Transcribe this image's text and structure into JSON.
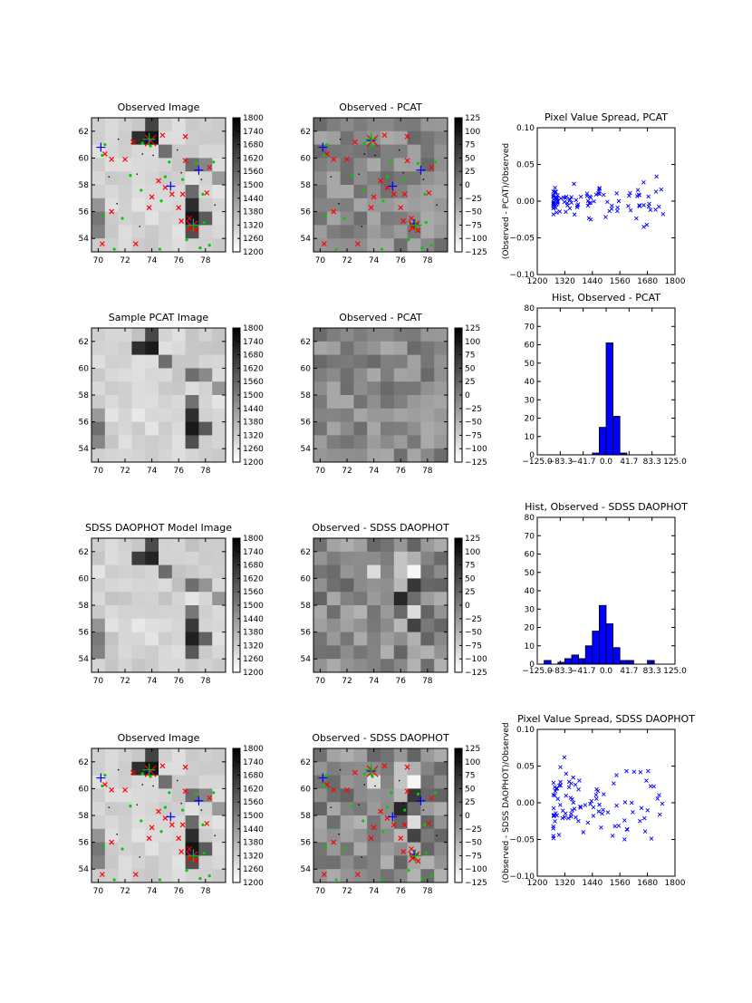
{
  "chart_data": [
    {
      "id": "p1",
      "type": "heatmap",
      "title": "Observed Image",
      "xticks": [
        70,
        72,
        74,
        76,
        78
      ],
      "yticks": [
        54,
        56,
        58,
        60,
        62
      ],
      "colorbar": [
        1200,
        1260,
        1320,
        1380,
        1440,
        1500,
        1560,
        1620,
        1680,
        1740,
        1800
      ],
      "overlay": "stars"
    },
    {
      "id": "p2",
      "type": "heatmap",
      "title": "Observed - PCAT",
      "xticks": [
        70,
        72,
        74,
        76,
        78
      ],
      "yticks": [
        54,
        56,
        58,
        60,
        62
      ],
      "colorbar": [
        -125,
        -100,
        -75,
        -50,
        -25,
        0,
        25,
        50,
        75,
        100,
        125
      ],
      "overlay": "stars"
    },
    {
      "id": "p3",
      "type": "scatter",
      "title": "Pixel Value Spread, PCAT",
      "ylabel": "(Observed - PCAT)/Observed",
      "xlim": [
        1200,
        1800
      ],
      "ylim": [
        -0.1,
        0.1
      ],
      "xticks": [
        "1200",
        "1320",
        "1440",
        "1560",
        "1680",
        "1800"
      ],
      "yticks": [
        "-0.10",
        "-0.05",
        "0.00",
        "0.05",
        "0.10"
      ],
      "spread": 0.012
    },
    {
      "id": "p4",
      "type": "heatmap",
      "title": "Sample PCAT Image",
      "xticks": [
        70,
        72,
        74,
        76,
        78
      ],
      "yticks": [
        54,
        56,
        58,
        60,
        62
      ],
      "colorbar": [
        1200,
        1260,
        1320,
        1380,
        1440,
        1500,
        1560,
        1620,
        1680,
        1740,
        1800
      ]
    },
    {
      "id": "p5",
      "type": "heatmap",
      "title": "Observed - PCAT",
      "xticks": [
        70,
        72,
        74,
        76,
        78
      ],
      "yticks": [
        54,
        56,
        58,
        60,
        62
      ],
      "colorbar": [
        -125,
        -100,
        -75,
        -50,
        -25,
        0,
        25,
        50,
        75,
        100,
        125
      ]
    },
    {
      "id": "p6",
      "type": "bar",
      "title": "Hist, Observed - PCAT",
      "xlim": [
        -125,
        125
      ],
      "ylim": [
        0,
        80
      ],
      "xticks": [
        "-125.0",
        "-83.3",
        "-41.7",
        "0.0",
        "41.7",
        "83.3",
        "125.0"
      ],
      "yticks": [
        "0",
        "10",
        "20",
        "30",
        "40",
        "50",
        "60",
        "70",
        "80"
      ],
      "bin_edges": [
        -125,
        -112.5,
        -100,
        -87.5,
        -75,
        -62.5,
        -50,
        -37.5,
        -25,
        -12.5,
        0,
        12.5,
        25,
        37.5,
        50,
        62.5,
        75,
        87.5,
        100,
        112.5,
        125
      ],
      "counts": [
        0,
        0,
        0,
        0,
        0,
        0,
        0,
        0,
        1,
        15,
        61,
        21,
        1,
        0,
        0,
        0,
        0,
        0,
        0,
        0
      ]
    },
    {
      "id": "p7",
      "type": "heatmap",
      "title": "SDSS DAOPHOT Model Image",
      "xticks": [
        70,
        72,
        74,
        76,
        78
      ],
      "yticks": [
        54,
        56,
        58,
        60,
        62
      ],
      "colorbar": [
        1200,
        1260,
        1320,
        1380,
        1440,
        1500,
        1560,
        1620,
        1680,
        1740,
        1800
      ]
    },
    {
      "id": "p8",
      "type": "heatmap",
      "title": "Observed - SDSS DAOPHOT",
      "xticks": [
        70,
        72,
        74,
        76,
        78
      ],
      "yticks": [
        54,
        56,
        58,
        60,
        62
      ],
      "colorbar": [
        -125,
        -100,
        -75,
        -50,
        -25,
        0,
        25,
        50,
        75,
        100,
        125
      ]
    },
    {
      "id": "p9",
      "type": "bar",
      "title": "Hist, Observed - SDSS DAOPHOT",
      "xlim": [
        -125,
        125
      ],
      "ylim": [
        0,
        80
      ],
      "xticks": [
        "-125.0",
        "-83.3",
        "-41.7",
        "0.0",
        "41.7",
        "83.3",
        "125.0"
      ],
      "yticks": [
        "0",
        "10",
        "20",
        "30",
        "40",
        "50",
        "60",
        "70",
        "80"
      ],
      "bin_edges": [
        -125,
        -112.5,
        -100,
        -87.5,
        -75,
        -62.5,
        -50,
        -37.5,
        -25,
        -12.5,
        0,
        12.5,
        25,
        37.5,
        50,
        62.5,
        75,
        87.5,
        100,
        112.5,
        125
      ],
      "counts": [
        0,
        2,
        0,
        1,
        3,
        5,
        3,
        10,
        18,
        32,
        22,
        9,
        2,
        2,
        0,
        0,
        2,
        0,
        0,
        0
      ]
    },
    {
      "id": "p10",
      "type": "heatmap",
      "title": "Observed Image",
      "xticks": [
        70,
        72,
        74,
        76,
        78
      ],
      "yticks": [
        54,
        56,
        58,
        60,
        62
      ],
      "colorbar": [
        1200,
        1260,
        1320,
        1380,
        1440,
        1500,
        1560,
        1620,
        1680,
        1740,
        1800
      ],
      "overlay": "stars"
    },
    {
      "id": "p11",
      "type": "heatmap",
      "title": "Observed - SDSS DAOPHOT",
      "xticks": [
        70,
        72,
        74,
        76,
        78
      ],
      "yticks": [
        54,
        56,
        58,
        60,
        62
      ],
      "colorbar": [
        -125,
        -100,
        -75,
        -50,
        -25,
        0,
        25,
        50,
        75,
        100,
        125
      ],
      "overlay": "stars"
    },
    {
      "id": "p12",
      "type": "scatter",
      "title": "Pixel Value Spread, SDSS DAOPHOT",
      "ylabel": "(Observed - SDSS DAOPHOT)/Observed",
      "xlim": [
        1200,
        1800
      ],
      "ylim": [
        -0.1,
        0.1
      ],
      "xticks": [
        "1200",
        "1320",
        "1440",
        "1560",
        "1680",
        "1800"
      ],
      "yticks": [
        "-0.10",
        "-0.05",
        "0.00",
        "0.05",
        "0.10"
      ],
      "spread": 0.03
    }
  ]
}
